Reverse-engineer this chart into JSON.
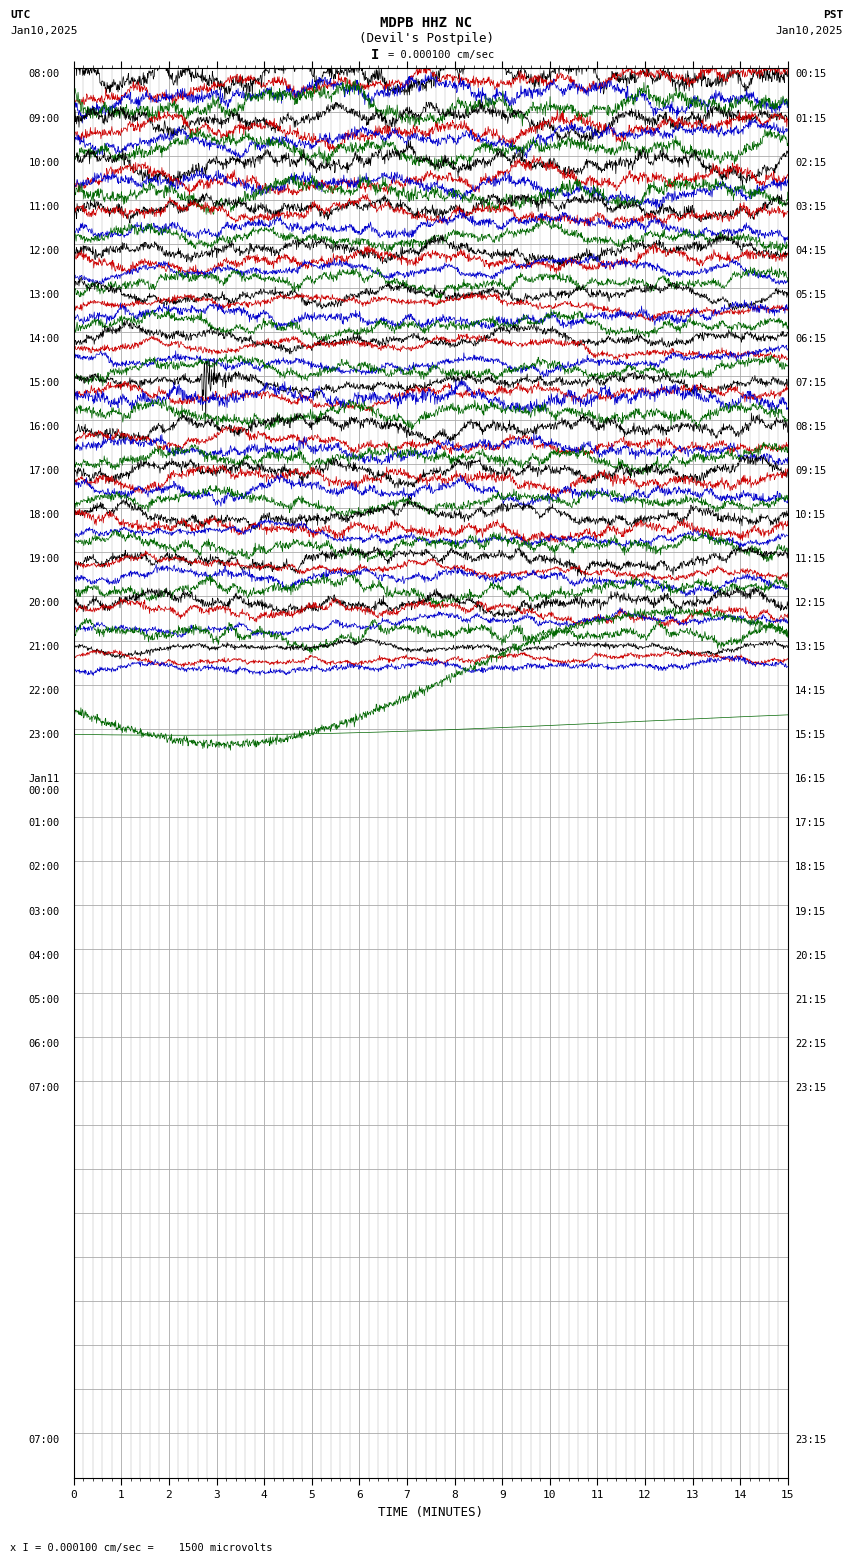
{
  "title_line1": "MDPB HHZ NC",
  "title_line2": "(Devil's Postpile)",
  "scale_label": "I = 0.000100 cm/sec",
  "utc_label": "UTC",
  "pst_label": "PST",
  "date_left": "Jan10,2025",
  "date_right": "Jan10,2025",
  "xlabel": "TIME (MINUTES)",
  "footer": "x I = 0.000100 cm/sec =    1500 microvolts",
  "bg_color": "#ffffff",
  "grid_color": "#aaaaaa",
  "trace_colors": [
    "#000000",
    "#cc0000",
    "#0000cc",
    "#006600"
  ],
  "num_rows": 32,
  "minutes_per_row": 15,
  "left_labels": [
    "08:00",
    "09:00",
    "10:00",
    "11:00",
    "12:00",
    "13:00",
    "14:00",
    "15:00",
    "16:00",
    "17:00",
    "18:00",
    "19:00",
    "20:00",
    "21:00",
    "22:00",
    "23:00",
    "Jan11\n00:00",
    "01:00",
    "02:00",
    "03:00",
    "04:00",
    "05:00",
    "06:00",
    "07:00",
    "",
    "",
    "",
    "",
    "",
    "",
    "",
    "07:00"
  ],
  "right_labels": [
    "00:15",
    "01:15",
    "02:15",
    "03:15",
    "04:15",
    "05:15",
    "06:15",
    "07:15",
    "08:15",
    "09:15",
    "10:15",
    "11:15",
    "12:15",
    "13:15",
    "14:15",
    "15:15",
    "16:15",
    "17:15",
    "18:15",
    "19:15",
    "20:15",
    "21:15",
    "22:15",
    "23:15",
    "",
    "",
    "",
    "",
    "",
    "",
    "",
    "23:15"
  ],
  "active_rows": 13,
  "partial_rows": [
    13,
    14
  ],
  "fig_width": 8.5,
  "fig_height": 15.84
}
